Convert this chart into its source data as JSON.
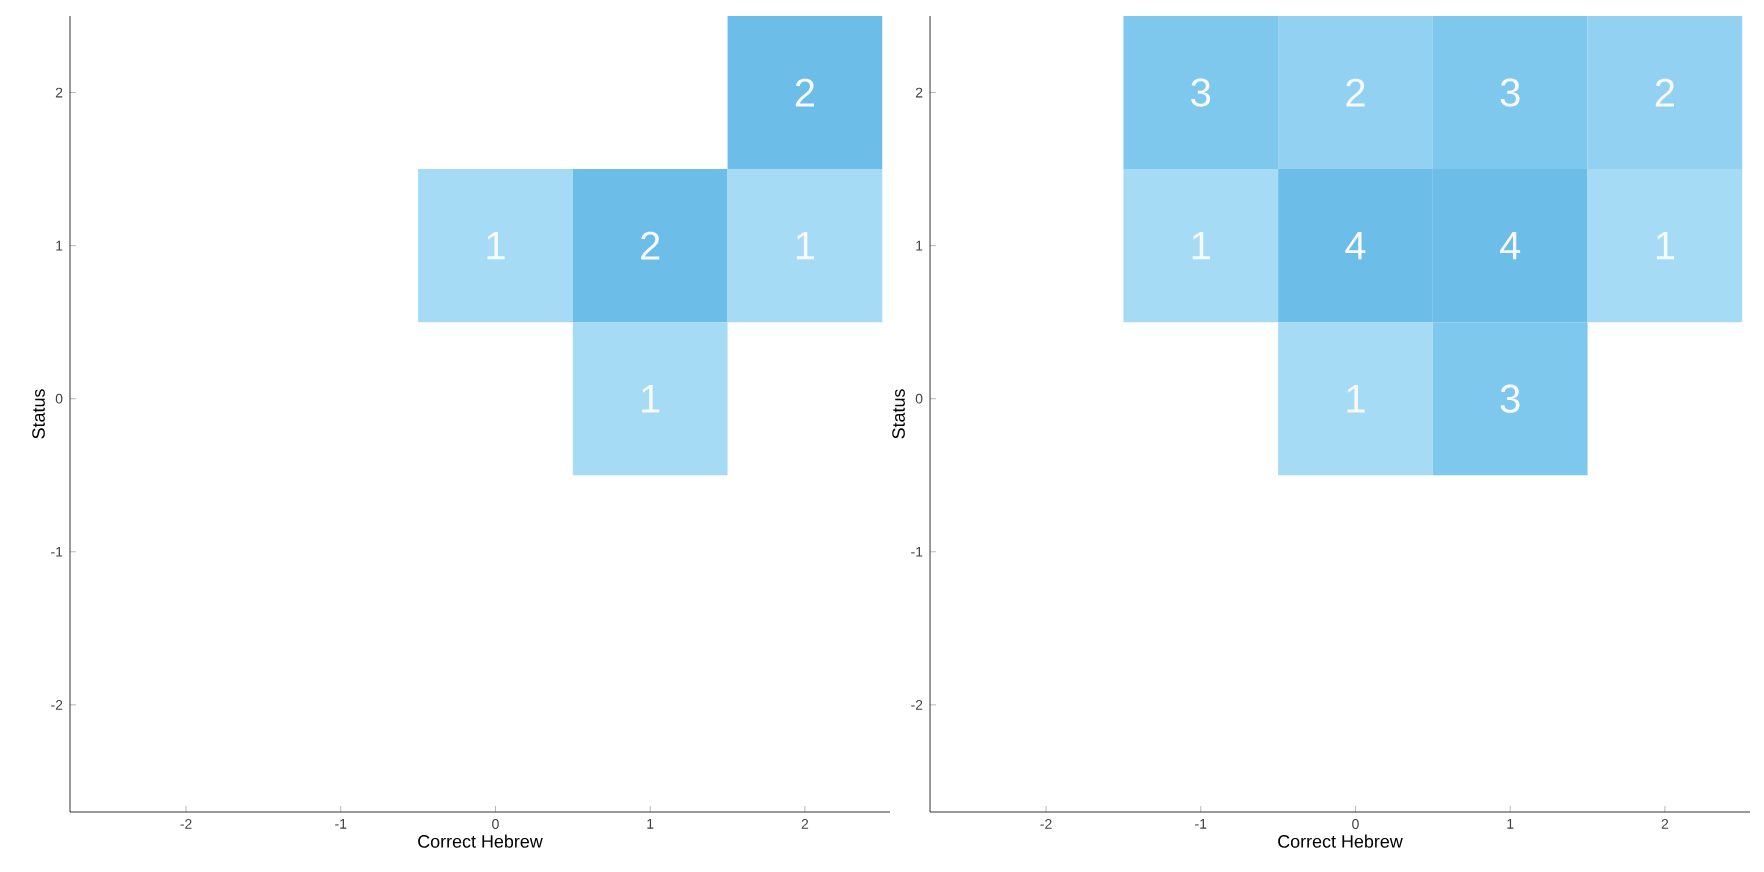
{
  "chart_data": [
    {
      "type": "heatmap",
      "xlabel": "Correct Hebrew",
      "ylabel": "Status",
      "data_labels": true,
      "categories": [
        "-2",
        "-1",
        "0",
        "1",
        "2"
      ],
      "y_categories": [
        "2",
        "1",
        "0",
        "-1",
        "-2"
      ],
      "cells": [
        [
          null,
          null,
          null,
          null,
          2
        ],
        [
          null,
          null,
          1,
          2,
          1
        ],
        [
          null,
          null,
          null,
          1,
          null
        ],
        [
          null,
          null,
          null,
          null,
          null
        ],
        [
          null,
          null,
          null,
          null,
          null
        ]
      ]
    },
    {
      "type": "heatmap",
      "xlabel": "Correct Hebrew",
      "ylabel": "Status",
      "data_labels": true,
      "categories": [
        "-2",
        "-1",
        "0",
        "1",
        "2"
      ],
      "y_categories": [
        "2",
        "1",
        "0",
        "-1",
        "-2"
      ],
      "cells": [
        [
          null,
          3,
          2,
          3,
          2
        ],
        [
          null,
          1,
          4,
          4,
          1
        ],
        [
          null,
          null,
          1,
          3,
          null
        ],
        [
          null,
          null,
          null,
          null,
          null
        ],
        [
          null,
          null,
          null,
          null,
          null
        ]
      ]
    }
  ]
}
